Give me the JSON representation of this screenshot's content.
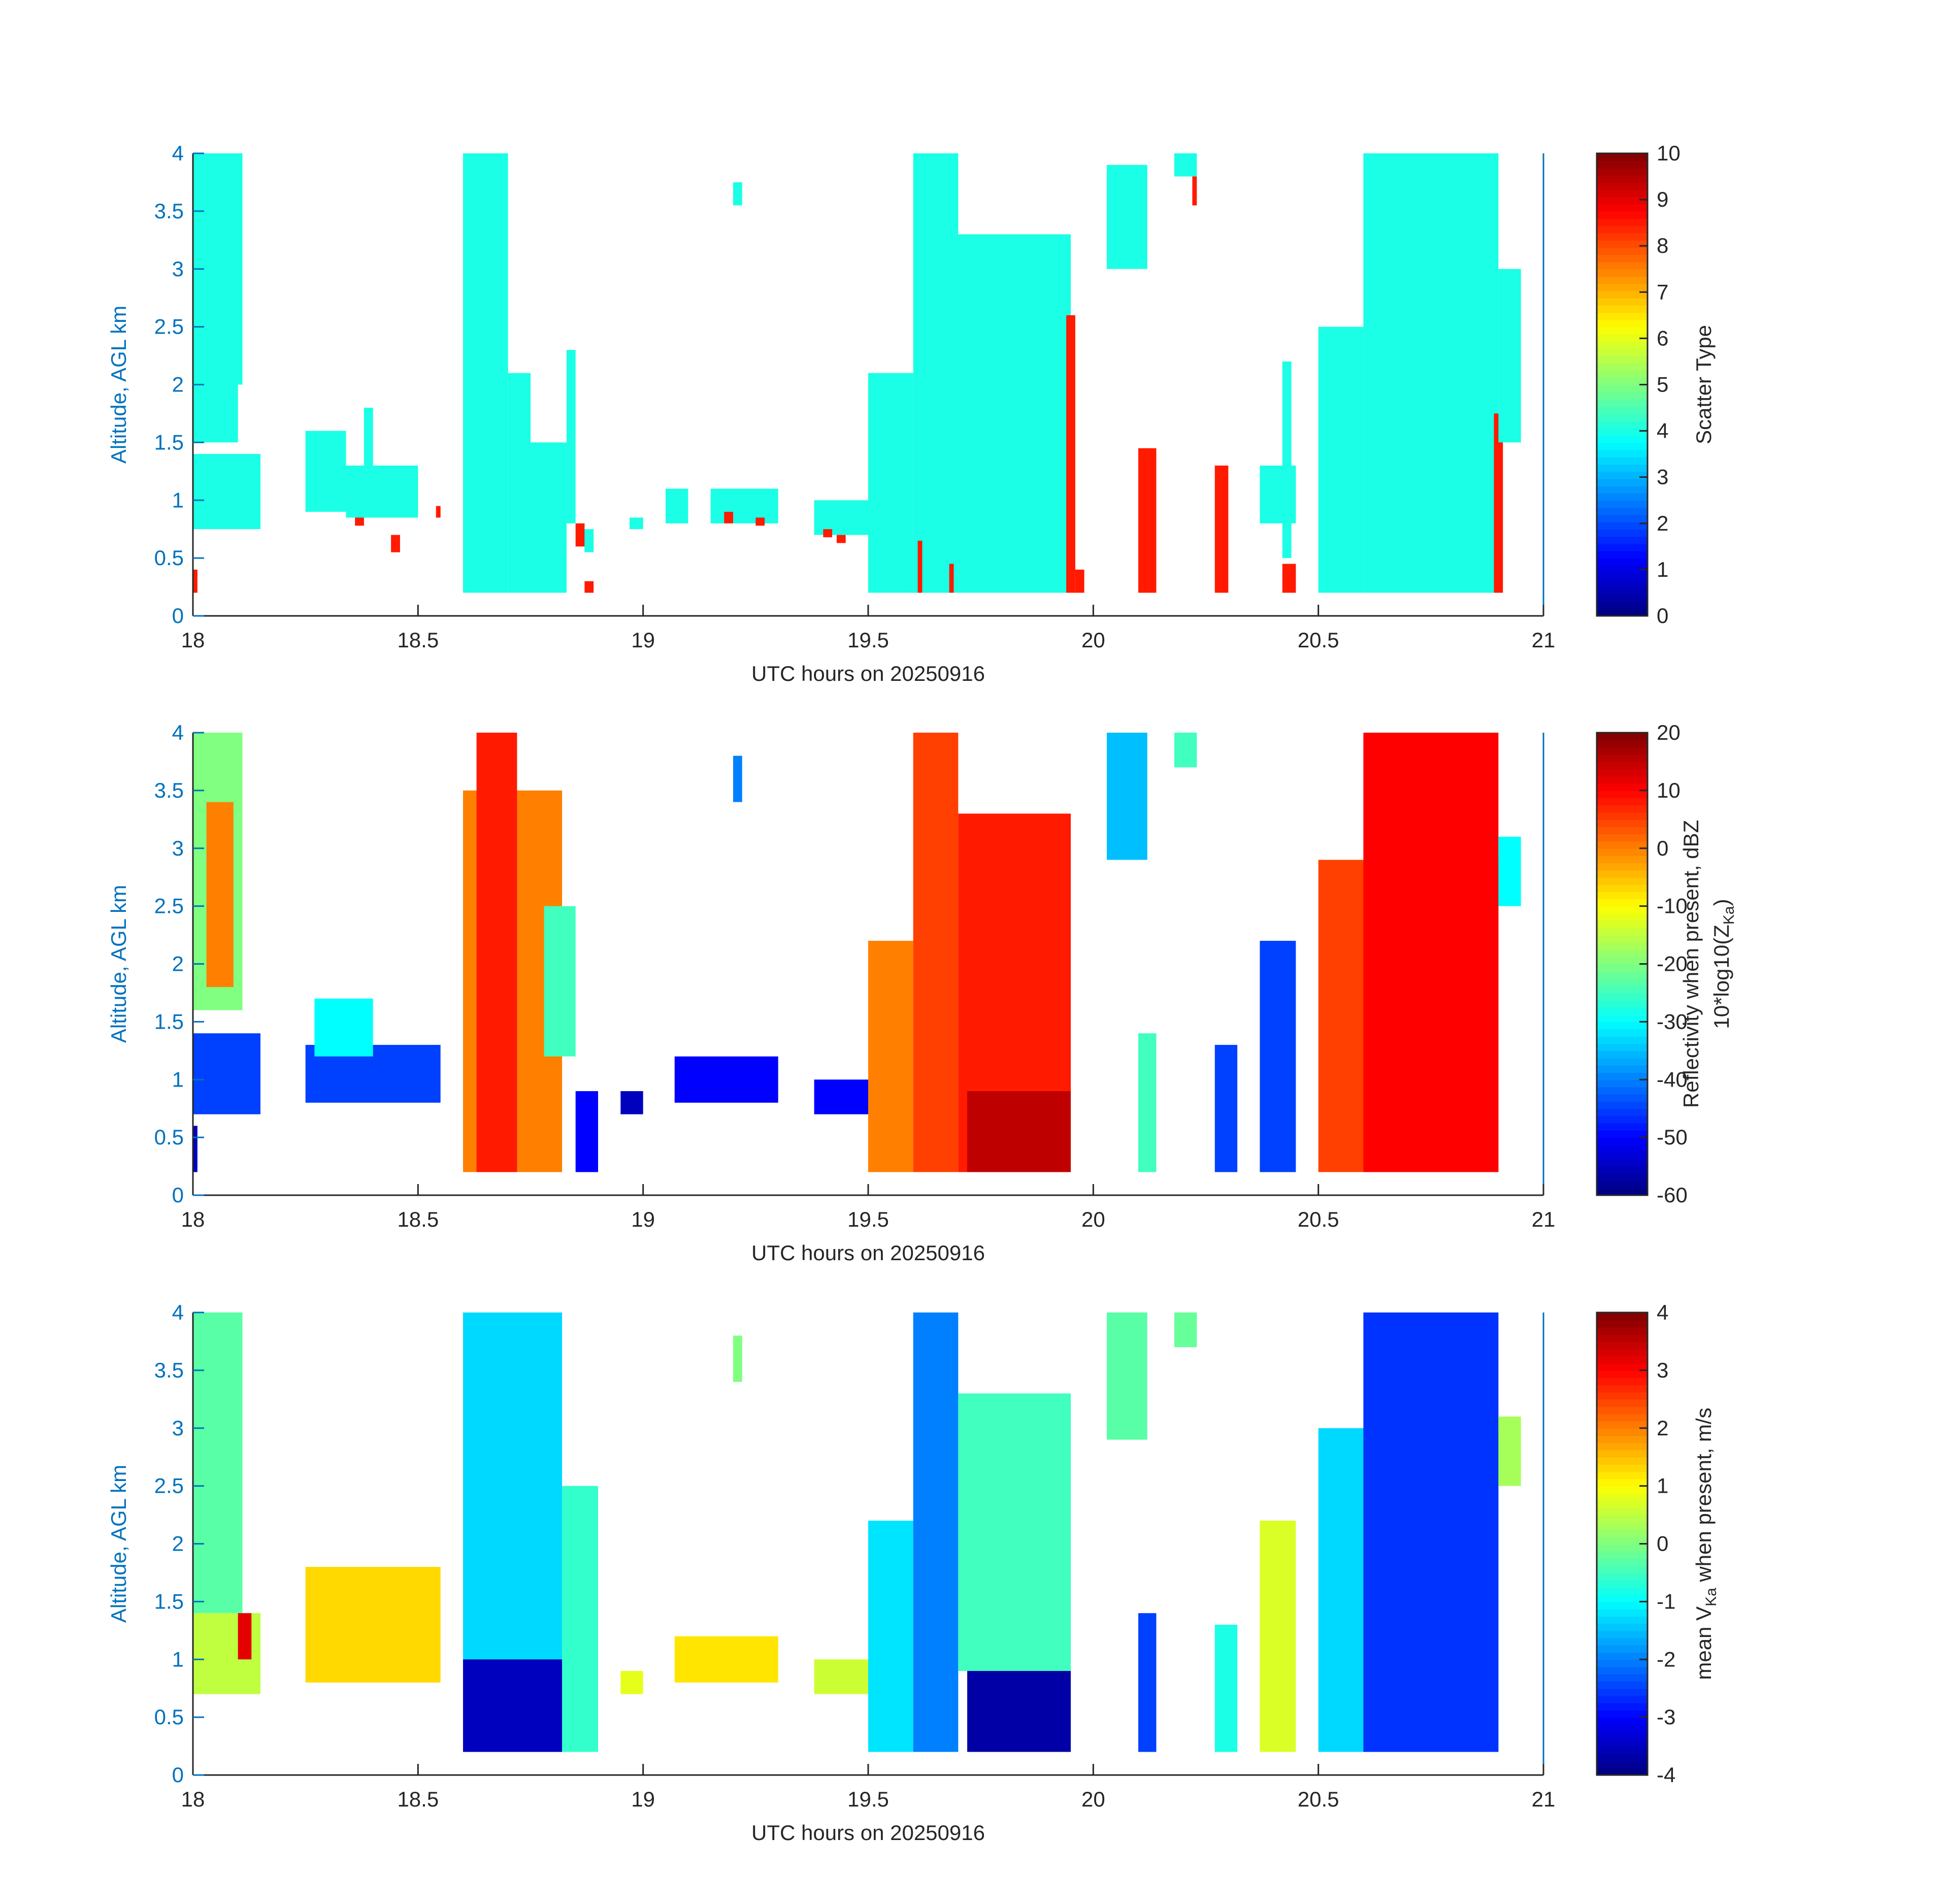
{
  "figure": {
    "panels": [
      {
        "id": "scatter-type",
        "xlabel": "UTC hours on 20250916",
        "ylabel": "Altitude, AGL km",
        "colorbar_label": "Scatter Type",
        "colorbar_label2": "",
        "cb_ticks": [
          "0",
          "1",
          "2",
          "3",
          "4",
          "5",
          "6",
          "7",
          "8",
          "9",
          "10"
        ]
      },
      {
        "id": "reflectivity",
        "xlabel": "UTC hours on 20250916",
        "ylabel": "Altitude, AGL km",
        "colorbar_label": "Reflectivity when present, dBZ",
        "colorbar_label2": "10*log10(Z",
        "colorbar_label2_sub": "Ka",
        "colorbar_label2_end": ")",
        "cb_ticks": [
          "-60",
          "-50",
          "-40",
          "-30",
          "-20",
          "-10",
          "0",
          "10",
          "20"
        ]
      },
      {
        "id": "velocity",
        "xlabel": "UTC hours on 20250916",
        "ylabel": "Altitude, AGL km",
        "colorbar_label": "mean V",
        "colorbar_label_sub": "Ka",
        "colorbar_label_end": " when present, m/s",
        "colorbar_label2": "",
        "cb_ticks": [
          "-4",
          "-3",
          "-2",
          "-1",
          "0",
          "1",
          "2",
          "3",
          "4"
        ]
      }
    ],
    "xticks": [
      "18",
      "18.5",
      "19",
      "19.5",
      "20",
      "20.5",
      "21"
    ],
    "yticks": [
      "0",
      "0.5",
      "1",
      "1.5",
      "2",
      "2.5",
      "3",
      "3.5",
      "4"
    ]
  },
  "chart_data": [
    {
      "type": "heatmap",
      "title": "",
      "xlabel": "UTC hours on 20250916",
      "ylabel": "Altitude, AGL km",
      "xlim": [
        18,
        21
      ],
      "ylim": [
        0,
        4
      ],
      "colorbar": {
        "label": "Scatter Type",
        "range": [
          0,
          10
        ],
        "colormap": "jet"
      },
      "cells": [
        {
          "x": [
            18.0,
            18.01
          ],
          "y": [
            0.2,
            0.4
          ],
          "v": 8.5
        },
        {
          "x": [
            18.0,
            18.1
          ],
          "y": [
            1.5,
            4.0
          ],
          "v": 4
        },
        {
          "x": [
            18.04,
            18.11
          ],
          "y": [
            2.0,
            4.0
          ],
          "v": 4
        },
        {
          "x": [
            18.0,
            18.15
          ],
          "y": [
            0.75,
            1.4
          ],
          "v": 4
        },
        {
          "x": [
            18.25,
            18.34
          ],
          "y": [
            0.9,
            1.6
          ],
          "v": 4
        },
        {
          "x": [
            18.34,
            18.5
          ],
          "y": [
            0.85,
            1.3
          ],
          "v": 4
        },
        {
          "x": [
            18.38,
            18.4
          ],
          "y": [
            1.3,
            1.8
          ],
          "v": 4
        },
        {
          "x": [
            18.36,
            18.38
          ],
          "y": [
            0.78,
            0.85
          ],
          "v": 8.5
        },
        {
          "x": [
            18.44,
            18.46
          ],
          "y": [
            0.55,
            0.7
          ],
          "v": 8.5
        },
        {
          "x": [
            18.54,
            18.55
          ],
          "y": [
            0.85,
            0.95
          ],
          "v": 8.5
        },
        {
          "x": [
            18.6,
            18.7
          ],
          "y": [
            0.2,
            4.0
          ],
          "v": 4
        },
        {
          "x": [
            18.7,
            18.75
          ],
          "y": [
            0.2,
            2.1
          ],
          "v": 4
        },
        {
          "x": [
            18.75,
            18.83
          ],
          "y": [
            0.2,
            1.5
          ],
          "v": 4
        },
        {
          "x": [
            18.83,
            18.85
          ],
          "y": [
            0.8,
            2.3
          ],
          "v": 4
        },
        {
          "x": [
            18.85,
            18.87
          ],
          "y": [
            0.6,
            0.8
          ],
          "v": 8.5
        },
        {
          "x": [
            18.87,
            18.89
          ],
          "y": [
            0.2,
            0.3
          ],
          "v": 8.5
        },
        {
          "x": [
            18.87,
            18.89
          ],
          "y": [
            0.55,
            0.75
          ],
          "v": 4
        },
        {
          "x": [
            18.97,
            19.0
          ],
          "y": [
            0.75,
            0.85
          ],
          "v": 4
        },
        {
          "x": [
            19.05,
            19.1
          ],
          "y": [
            0.8,
            1.1
          ],
          "v": 4
        },
        {
          "x": [
            19.15,
            19.3
          ],
          "y": [
            0.8,
            1.1
          ],
          "v": 4
        },
        {
          "x": [
            19.18,
            19.2
          ],
          "y": [
            0.8,
            0.9
          ],
          "v": 8.5
        },
        {
          "x": [
            19.25,
            19.27
          ],
          "y": [
            0.78,
            0.85
          ],
          "v": 8.5
        },
        {
          "x": [
            19.2,
            19.22
          ],
          "y": [
            3.55,
            3.75
          ],
          "v": 4
        },
        {
          "x": [
            19.38,
            19.5
          ],
          "y": [
            0.7,
            1.0
          ],
          "v": 4
        },
        {
          "x": [
            19.4,
            19.42
          ],
          "y": [
            0.68,
            0.75
          ],
          "v": 8.5
        },
        {
          "x": [
            19.43,
            19.45
          ],
          "y": [
            0.63,
            0.7
          ],
          "v": 8.5
        },
        {
          "x": [
            19.5,
            19.6
          ],
          "y": [
            0.2,
            2.1
          ],
          "v": 4
        },
        {
          "x": [
            19.6,
            19.7
          ],
          "y": [
            0.2,
            4.0
          ],
          "v": 4
        },
        {
          "x": [
            19.7,
            19.95
          ],
          "y": [
            0.2,
            3.3
          ],
          "v": 4
        },
        {
          "x": [
            19.61,
            19.62
          ],
          "y": [
            0.2,
            0.65
          ],
          "v": 8.5
        },
        {
          "x": [
            19.68,
            19.69
          ],
          "y": [
            0.2,
            0.45
          ],
          "v": 8.5
        },
        {
          "x": [
            19.94,
            19.96
          ],
          "y": [
            0.2,
            2.6
          ],
          "v": 8.5
        },
        {
          "x": [
            19.96,
            19.98
          ],
          "y": [
            0.2,
            0.4
          ],
          "v": 8.5
        },
        {
          "x": [
            20.03,
            20.12
          ],
          "y": [
            3.0,
            3.9
          ],
          "v": 4
        },
        {
          "x": [
            20.18,
            20.23
          ],
          "y": [
            3.8,
            4.0
          ],
          "v": 4
        },
        {
          "x": [
            20.22,
            20.23
          ],
          "y": [
            3.55,
            3.8
          ],
          "v": 8.5
        },
        {
          "x": [
            20.1,
            20.14
          ],
          "y": [
            0.2,
            1.45
          ],
          "v": 8.5
        },
        {
          "x": [
            20.27,
            20.3
          ],
          "y": [
            0.2,
            1.3
          ],
          "v": 8.5
        },
        {
          "x": [
            20.37,
            20.45
          ],
          "y": [
            0.8,
            1.3
          ],
          "v": 4
        },
        {
          "x": [
            20.42,
            20.45
          ],
          "y": [
            0.2,
            0.45
          ],
          "v": 8.5
        },
        {
          "x": [
            20.42,
            20.44
          ],
          "y": [
            0.5,
            2.2
          ],
          "v": 4
        },
        {
          "x": [
            20.5,
            20.6
          ],
          "y": [
            0.2,
            2.5
          ],
          "v": 4
        },
        {
          "x": [
            20.6,
            20.9
          ],
          "y": [
            0.2,
            4.0
          ],
          "v": 4
        },
        {
          "x": [
            20.89,
            20.91
          ],
          "y": [
            0.2,
            1.75
          ],
          "v": 8.5
        },
        {
          "x": [
            20.9,
            20.95
          ],
          "y": [
            1.5,
            3.0
          ],
          "v": 4
        }
      ]
    },
    {
      "type": "heatmap",
      "title": "",
      "xlabel": "UTC hours on 20250916",
      "ylabel": "Altitude, AGL km",
      "xlim": [
        18,
        21
      ],
      "ylim": [
        0,
        4
      ],
      "colorbar": {
        "label": "Reflectivity when present, dBZ  10*log10(Z_Ka)",
        "range": [
          -60,
          20
        ],
        "colormap": "jet"
      },
      "cells": [
        {
          "x": [
            18.0,
            18.11
          ],
          "y": [
            1.6,
            4.0
          ],
          "v": -20
        },
        {
          "x": [
            18.03,
            18.09
          ],
          "y": [
            1.8,
            3.4
          ],
          "v": 0
        },
        {
          "x": [
            18.0,
            18.15
          ],
          "y": [
            0.7,
            1.4
          ],
          "v": -45
        },
        {
          "x": [
            18.0,
            18.01
          ],
          "y": [
            0.2,
            0.6
          ],
          "v": -55
        },
        {
          "x": [
            18.25,
            18.55
          ],
          "y": [
            0.8,
            1.3
          ],
          "v": -45
        },
        {
          "x": [
            18.27,
            18.4
          ],
          "y": [
            1.2,
            1.7
          ],
          "v": -30
        },
        {
          "x": [
            18.6,
            18.82
          ],
          "y": [
            0.2,
            3.5
          ],
          "v": 0
        },
        {
          "x": [
            18.63,
            18.72
          ],
          "y": [
            0.2,
            4.0
          ],
          "v": 8
        },
        {
          "x": [
            18.78,
            18.85
          ],
          "y": [
            1.2,
            2.5
          ],
          "v": -25
        },
        {
          "x": [
            18.85,
            18.9
          ],
          "y": [
            0.2,
            0.9
          ],
          "v": -50
        },
        {
          "x": [
            18.95,
            19.0
          ],
          "y": [
            0.7,
            0.9
          ],
          "v": -55
        },
        {
          "x": [
            19.07,
            19.3
          ],
          "y": [
            0.8,
            1.2
          ],
          "v": -50
        },
        {
          "x": [
            19.2,
            19.22
          ],
          "y": [
            3.4,
            3.8
          ],
          "v": -40
        },
        {
          "x": [
            19.38,
            19.5
          ],
          "y": [
            0.7,
            1.0
          ],
          "v": -50
        },
        {
          "x": [
            19.5,
            19.6
          ],
          "y": [
            0.2,
            2.2
          ],
          "v": 0
        },
        {
          "x": [
            19.6,
            19.7
          ],
          "y": [
            0.2,
            4.0
          ],
          "v": 5
        },
        {
          "x": [
            19.7,
            19.95
          ],
          "y": [
            0.2,
            3.3
          ],
          "v": 8
        },
        {
          "x": [
            19.72,
            19.95
          ],
          "y": [
            0.2,
            0.9
          ],
          "v": 15
        },
        {
          "x": [
            20.03,
            20.12
          ],
          "y": [
            2.9,
            4.0
          ],
          "v": -35
        },
        {
          "x": [
            20.18,
            20.23
          ],
          "y": [
            3.7,
            4.0
          ],
          "v": -25
        },
        {
          "x": [
            20.1,
            20.14
          ],
          "y": [
            0.2,
            1.4
          ],
          "v": -25
        },
        {
          "x": [
            20.27,
            20.32
          ],
          "y": [
            0.2,
            1.3
          ],
          "v": -45
        },
        {
          "x": [
            20.37,
            20.45
          ],
          "y": [
            0.2,
            2.2
          ],
          "v": -45
        },
        {
          "x": [
            20.5,
            20.9
          ],
          "y": [
            0.2,
            2.9
          ],
          "v": 5
        },
        {
          "x": [
            20.6,
            20.9
          ],
          "y": [
            0.2,
            4.0
          ],
          "v": 10
        },
        {
          "x": [
            20.9,
            20.95
          ],
          "y": [
            2.5,
            3.1
          ],
          "v": -30
        }
      ]
    },
    {
      "type": "heatmap",
      "title": "",
      "xlabel": "UTC hours on 20250916",
      "ylabel": "Altitude, AGL km",
      "xlim": [
        18,
        21
      ],
      "ylim": [
        0,
        4
      ],
      "colorbar": {
        "label": "mean V_Ka when present, m/s",
        "range": [
          -4,
          4
        ],
        "colormap": "jet"
      },
      "cells": [
        {
          "x": [
            18.0,
            18.11
          ],
          "y": [
            1.4,
            4.0
          ],
          "v": -0.3
        },
        {
          "x": [
            18.0,
            18.15
          ],
          "y": [
            0.7,
            1.4
          ],
          "v": 0.5
        },
        {
          "x": [
            18.1,
            18.13
          ],
          "y": [
            1.0,
            1.4
          ],
          "v": 3.2
        },
        {
          "x": [
            18.25,
            18.55
          ],
          "y": [
            0.8,
            1.8
          ],
          "v": 1.3
        },
        {
          "x": [
            18.6,
            18.82
          ],
          "y": [
            0.2,
            4.0
          ],
          "v": -1.3
        },
        {
          "x": [
            18.6,
            18.82
          ],
          "y": [
            0.2,
            1.0
          ],
          "v": -3.5
        },
        {
          "x": [
            18.82,
            18.9
          ],
          "y": [
            0.2,
            2.5
          ],
          "v": -0.6
        },
        {
          "x": [
            18.95,
            19.0
          ],
          "y": [
            0.7,
            0.9
          ],
          "v": 0.8
        },
        {
          "x": [
            19.07,
            19.3
          ],
          "y": [
            0.8,
            1.2
          ],
          "v": 1.2
        },
        {
          "x": [
            19.2,
            19.22
          ],
          "y": [
            3.4,
            3.8
          ],
          "v": 0
        },
        {
          "x": [
            19.38,
            19.5
          ],
          "y": [
            0.7,
            1.0
          ],
          "v": 0.6
        },
        {
          "x": [
            19.5,
            19.6
          ],
          "y": [
            0.2,
            2.2
          ],
          "v": -1.2
        },
        {
          "x": [
            19.6,
            19.7
          ],
          "y": [
            0.2,
            4.0
          ],
          "v": -2.0
        },
        {
          "x": [
            19.7,
            19.95
          ],
          "y": [
            0.9,
            3.3
          ],
          "v": -0.5
        },
        {
          "x": [
            19.72,
            19.95
          ],
          "y": [
            0.2,
            0.9
          ],
          "v": -3.7
        },
        {
          "x": [
            20.03,
            20.12
          ],
          "y": [
            2.9,
            4.0
          ],
          "v": -0.3
        },
        {
          "x": [
            20.18,
            20.23
          ],
          "y": [
            3.7,
            4.0
          ],
          "v": -0.2
        },
        {
          "x": [
            20.1,
            20.14
          ],
          "y": [
            0.2,
            1.4
          ],
          "v": -2.5
        },
        {
          "x": [
            20.27,
            20.32
          ],
          "y": [
            0.2,
            1.3
          ],
          "v": -0.8
        },
        {
          "x": [
            20.37,
            20.45
          ],
          "y": [
            0.2,
            2.2
          ],
          "v": 0.7
        },
        {
          "x": [
            20.5,
            20.9
          ],
          "y": [
            0.2,
            3.0
          ],
          "v": -1.3
        },
        {
          "x": [
            20.6,
            20.9
          ],
          "y": [
            0.2,
            4.0
          ],
          "v": -2.6
        },
        {
          "x": [
            20.9,
            20.95
          ],
          "y": [
            2.5,
            3.1
          ],
          "v": 0.3
        }
      ]
    }
  ]
}
